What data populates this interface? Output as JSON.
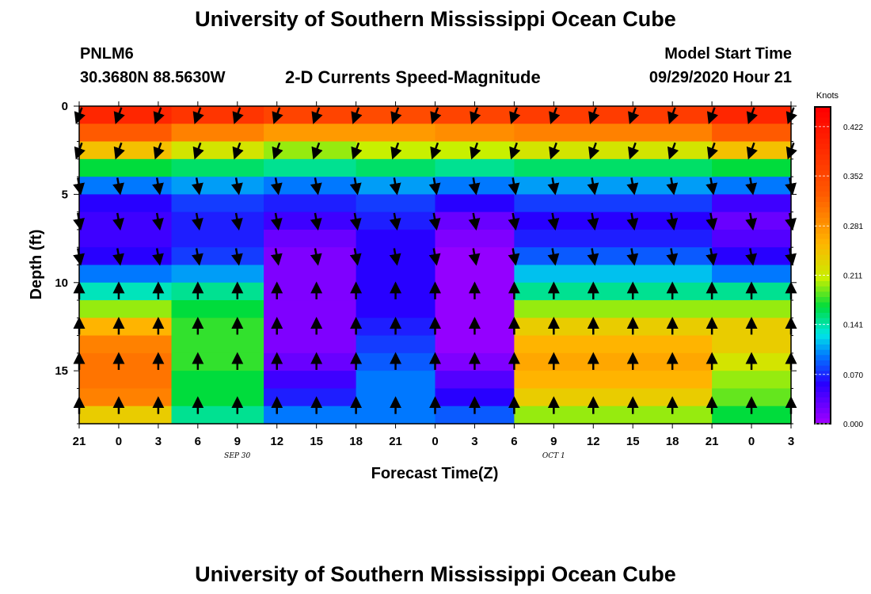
{
  "header": {
    "title": "University of Southern Mississippi Ocean Cube",
    "station": "PNLM6",
    "coords": "30.3680N 88.5630W",
    "subtitle": "2-D Currents Speed-Magnitude",
    "model_start_label": "Model Start Time",
    "model_start_value": "09/29/2020 Hour 21"
  },
  "footer": {
    "title": "University of Southern Mississippi Ocean Cube"
  },
  "chart_data": {
    "type": "heatmap",
    "title": "2-D Currents Speed-Magnitude",
    "xlabel": "Forecast Time(Z)",
    "ylabel": "Depth (ft)",
    "x_hours_range": [
      0,
      54
    ],
    "x_ticks": [
      "21",
      "0",
      "3",
      "6",
      "9",
      "12",
      "15",
      "18",
      "21",
      "0",
      "3",
      "6",
      "9",
      "12",
      "15",
      "18",
      "21",
      "0",
      "3"
    ],
    "date_labels": [
      {
        "text": "SEP 30",
        "hour": 15
      },
      {
        "text": "OCT 1",
        "hour": 39
      }
    ],
    "y_ticks": [
      0,
      5,
      10,
      15
    ],
    "ylim": [
      0,
      18
    ],
    "y_inverted": true,
    "colorbar": {
      "label": "Knots",
      "min": 0.0,
      "max": 0.45,
      "ticks": [
        "0.422",
        "0.352",
        "0.281",
        "0.211",
        "0.141",
        "0.070",
        "0.000"
      ]
    },
    "speed_profiles": [
      {
        "start_hour": 0,
        "depths": [
          0,
          1,
          2,
          3,
          4,
          5,
          6,
          7,
          8,
          9,
          10,
          11,
          12,
          13,
          14,
          15,
          16,
          17,
          18
        ],
        "speeds": [
          0.4,
          0.33,
          0.25,
          0.17,
          0.1,
          0.06,
          0.05,
          0.05,
          0.06,
          0.1,
          0.14,
          0.2,
          0.26,
          0.3,
          0.31,
          0.31,
          0.3,
          0.24,
          0.15
        ]
      },
      {
        "start_hour": 7,
        "depths": [
          0,
          1,
          2,
          3,
          4,
          5,
          6,
          7,
          8,
          9,
          10,
          11,
          12,
          13,
          14,
          15,
          16,
          17,
          18
        ],
        "speeds": [
          0.38,
          0.3,
          0.22,
          0.16,
          0.11,
          0.08,
          0.07,
          0.07,
          0.08,
          0.11,
          0.15,
          0.17,
          0.18,
          0.18,
          0.18,
          0.17,
          0.17,
          0.15,
          0.12
        ]
      },
      {
        "start_hour": 14,
        "depths": [
          0,
          1,
          2,
          3,
          4,
          5,
          6,
          7,
          8,
          9,
          10,
          11,
          12,
          13,
          14,
          15,
          16,
          17,
          18
        ],
        "speeds": [
          0.36,
          0.28,
          0.2,
          0.15,
          0.1,
          0.07,
          0.05,
          0.03,
          0.02,
          0.02,
          0.02,
          0.02,
          0.02,
          0.02,
          0.03,
          0.05,
          0.07,
          0.1,
          0.12
        ]
      },
      {
        "start_hour": 21,
        "depths": [
          0,
          1,
          2,
          3,
          4,
          5,
          6,
          7,
          8,
          9,
          10,
          11,
          12,
          13,
          14,
          15,
          16,
          17,
          18
        ],
        "speeds": [
          0.35,
          0.28,
          0.21,
          0.16,
          0.11,
          0.08,
          0.07,
          0.06,
          0.06,
          0.06,
          0.06,
          0.06,
          0.07,
          0.08,
          0.09,
          0.1,
          0.1,
          0.1,
          0.1
        ]
      },
      {
        "start_hour": 27,
        "depths": [
          0,
          1,
          2,
          3,
          4,
          5,
          6,
          7,
          8,
          9,
          10,
          11,
          12,
          13,
          14,
          15,
          16,
          17,
          18
        ],
        "speeds": [
          0.36,
          0.29,
          0.21,
          0.15,
          0.1,
          0.06,
          0.03,
          0.02,
          0.01,
          0.01,
          0.01,
          0.01,
          0.01,
          0.01,
          0.02,
          0.04,
          0.06,
          0.09,
          0.12
        ]
      },
      {
        "start_hour": 33,
        "depths": [
          0,
          1,
          2,
          3,
          4,
          5,
          6,
          7,
          8,
          9,
          10,
          11,
          12,
          13,
          14,
          15,
          16,
          17,
          18
        ],
        "speeds": [
          0.37,
          0.3,
          0.22,
          0.16,
          0.11,
          0.08,
          0.06,
          0.07,
          0.09,
          0.12,
          0.15,
          0.2,
          0.24,
          0.26,
          0.27,
          0.26,
          0.24,
          0.2,
          0.15
        ]
      },
      {
        "start_hour": 48,
        "depths": [
          0,
          1,
          2,
          3,
          4,
          5,
          6,
          7,
          8,
          9,
          10,
          11,
          12,
          13,
          14,
          15,
          16,
          17,
          18
        ],
        "speeds": [
          0.4,
          0.33,
          0.25,
          0.17,
          0.1,
          0.05,
          0.03,
          0.04,
          0.06,
          0.1,
          0.15,
          0.2,
          0.24,
          0.24,
          0.22,
          0.2,
          0.19,
          0.17,
          0.14
        ]
      }
    ],
    "arrow_columns": [
      0,
      1,
      2,
      3,
      4,
      5,
      6,
      7,
      8,
      9,
      10,
      11,
      12,
      13,
      14,
      15,
      16,
      17,
      18
    ],
    "arrow_depths": [
      0.5,
      2.5,
      4.5,
      6.5,
      8.5,
      10.5,
      12.5,
      14.5,
      17
    ],
    "arrow_direction_deg_by_layer": [
      {
        "depth_range": [
          0,
          3
        ],
        "direction_deg": 200
      },
      {
        "depth_range": [
          3,
          9
        ],
        "direction_deg": 170
      },
      {
        "depth_range": [
          9,
          18
        ],
        "direction_deg": 0
      }
    ]
  }
}
